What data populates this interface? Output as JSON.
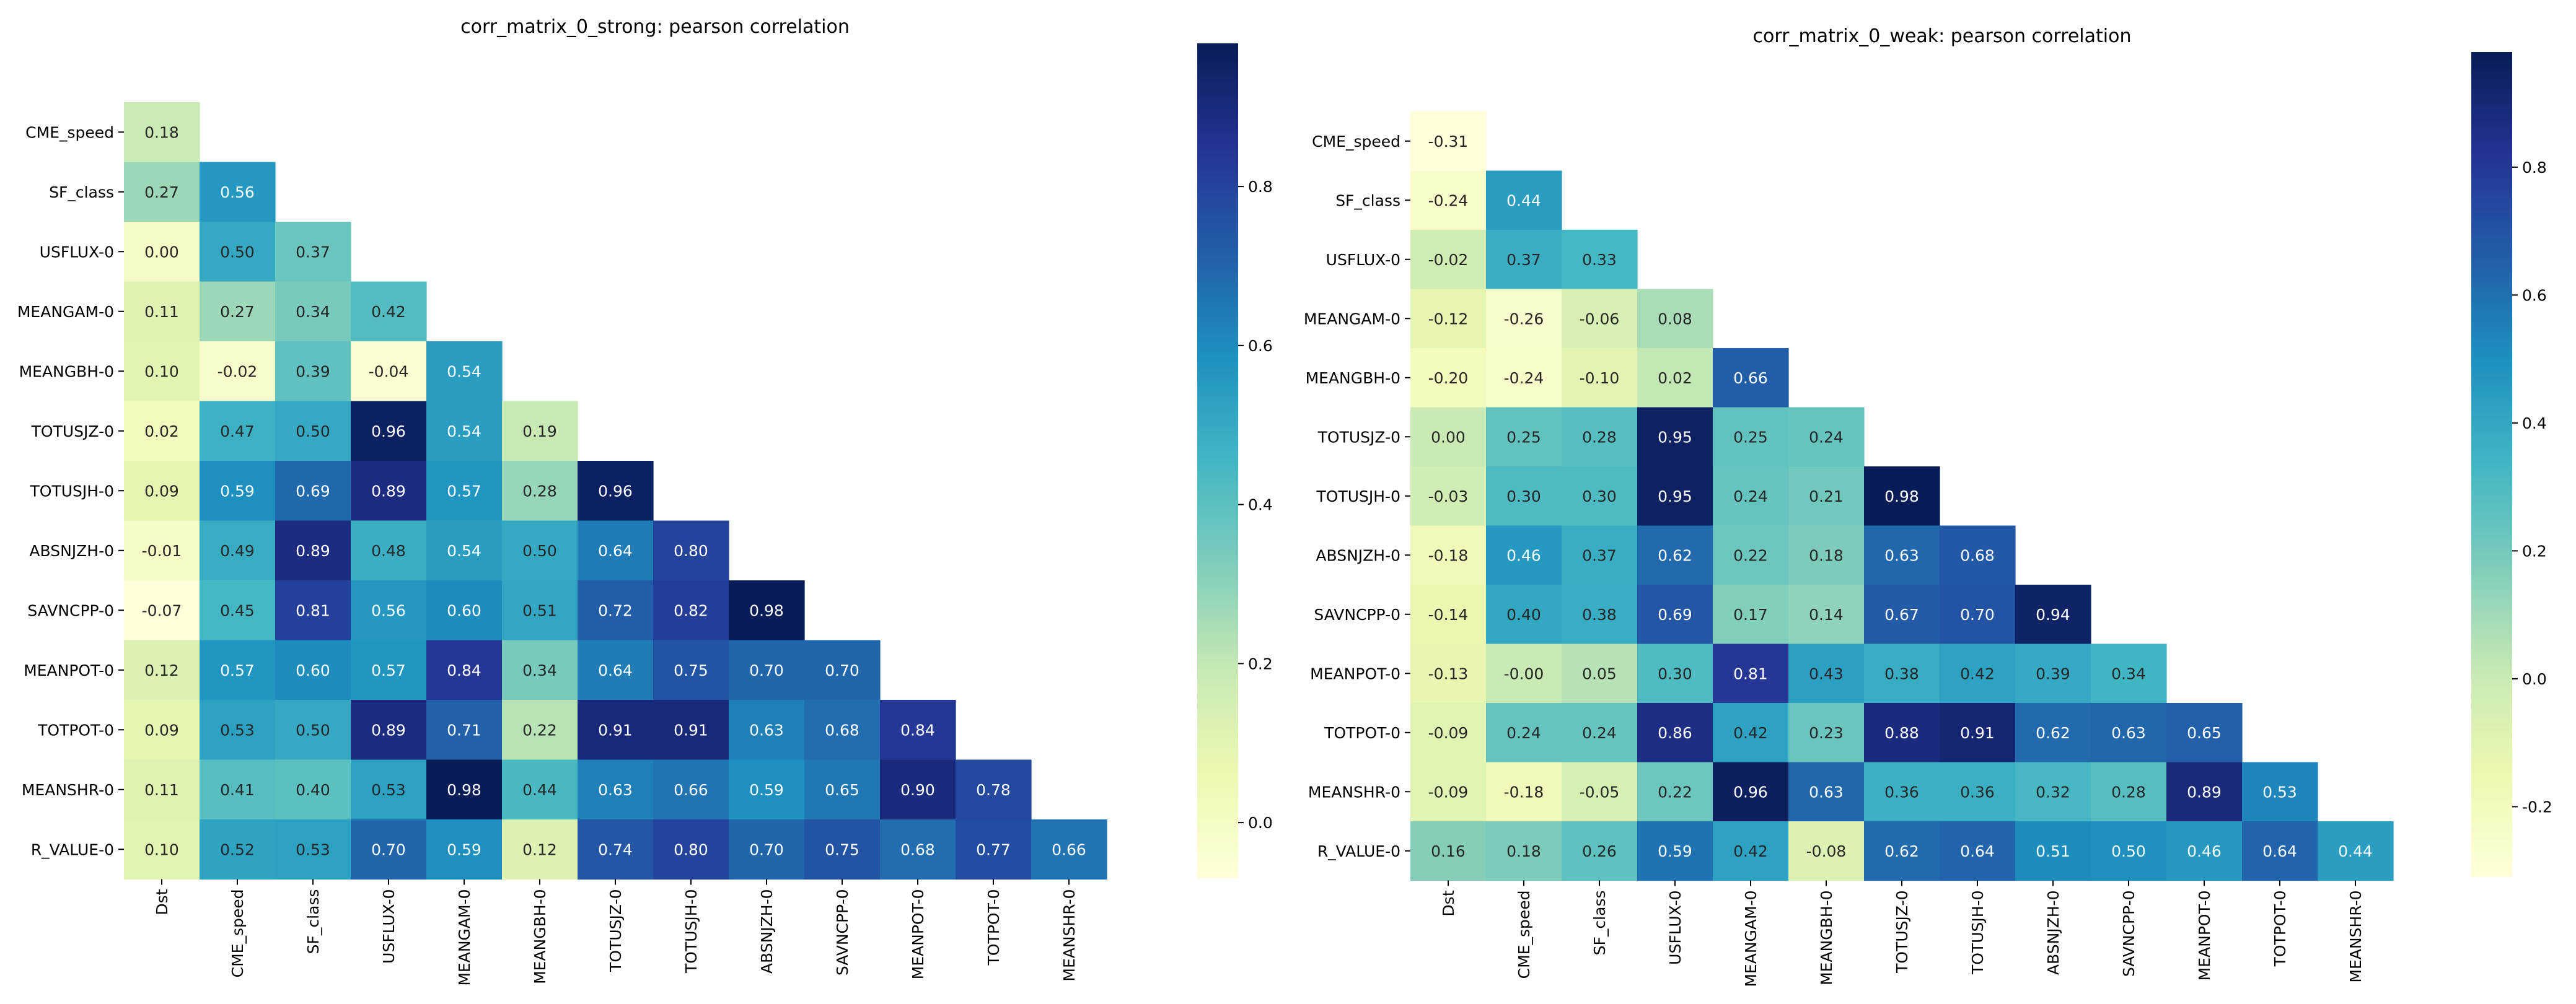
{
  "chart_data": [
    {
      "type": "heatmap",
      "title": "corr_matrix_0_strong: pearson correlation",
      "colormap": "YlGnBu",
      "vmin": -0.07,
      "vmax": 0.98,
      "row_labels": [
        "CME_speed",
        "SF_class",
        "USFLUX-0",
        "MEANGAM-0",
        "MEANGBH-0",
        "TOTUSJZ-0",
        "TOTUSJH-0",
        "ABSNJZH-0",
        "SAVNCPP-0",
        "MEANPOT-0",
        "TOTPOT-0",
        "MEANSHR-0",
        "R_VALUE-0"
      ],
      "col_labels": [
        "Dst",
        "CME_speed",
        "SF_class",
        "USFLUX-0",
        "MEANGAM-0",
        "MEANGBH-0",
        "TOTUSJZ-0",
        "TOTUSJH-0",
        "ABSNJZH-0",
        "SAVNCPP-0",
        "MEANPOT-0",
        "TOTPOT-0",
        "MEANSHR-0"
      ],
      "values": [
        [
          0.18
        ],
        [
          0.27,
          0.56
        ],
        [
          0.0,
          0.5,
          0.37
        ],
        [
          0.11,
          0.27,
          0.34,
          0.42
        ],
        [
          0.1,
          -0.02,
          0.39,
          -0.04,
          0.54
        ],
        [
          0.02,
          0.47,
          0.5,
          0.96,
          0.54,
          0.19
        ],
        [
          0.09,
          0.59,
          0.69,
          0.89,
          0.57,
          0.28,
          0.96
        ],
        [
          -0.01,
          0.49,
          0.89,
          0.48,
          0.54,
          0.5,
          0.64,
          0.8
        ],
        [
          -0.07,
          0.45,
          0.81,
          0.56,
          0.6,
          0.51,
          0.72,
          0.82,
          0.98
        ],
        [
          0.12,
          0.57,
          0.6,
          0.57,
          0.84,
          0.34,
          0.64,
          0.75,
          0.7,
          0.7
        ],
        [
          0.09,
          0.53,
          0.5,
          0.89,
          0.71,
          0.22,
          0.91,
          0.91,
          0.63,
          0.68,
          0.84
        ],
        [
          0.11,
          0.41,
          0.4,
          0.53,
          0.98,
          0.44,
          0.63,
          0.66,
          0.59,
          0.65,
          0.9,
          0.78
        ],
        [
          0.1,
          0.52,
          0.53,
          0.7,
          0.59,
          0.12,
          0.74,
          0.8,
          0.7,
          0.75,
          0.68,
          0.77,
          0.66
        ]
      ],
      "cell_labels": [
        [
          "0.18"
        ],
        [
          "0.27",
          "0.56"
        ],
        [
          "0.00",
          "0.50",
          "0.37"
        ],
        [
          "0.11",
          "0.27",
          "0.34",
          "0.42"
        ],
        [
          "0.10",
          "-0.02",
          "0.39",
          "-0.04",
          "0.54"
        ],
        [
          "0.02",
          "0.47",
          "0.50",
          "0.96",
          "0.54",
          "0.19"
        ],
        [
          "0.09",
          "0.59",
          "0.69",
          "0.89",
          "0.57",
          "0.28",
          "0.96"
        ],
        [
          "-0.01",
          "0.49",
          "0.89",
          "0.48",
          "0.54",
          "0.50",
          "0.64",
          "0.80"
        ],
        [
          "-0.07",
          "0.45",
          "0.81",
          "0.56",
          "0.60",
          "0.51",
          "0.72",
          "0.82",
          "0.98"
        ],
        [
          "0.12",
          "0.57",
          "0.60",
          "0.57",
          "0.84",
          "0.34",
          "0.64",
          "0.75",
          "0.70",
          "0.70"
        ],
        [
          "0.09",
          "0.53",
          "0.50",
          "0.89",
          "0.71",
          "0.22",
          "0.91",
          "0.91",
          "0.63",
          "0.68",
          "0.84"
        ],
        [
          "0.11",
          "0.41",
          "0.40",
          "0.53",
          "0.98",
          "0.44",
          "0.63",
          "0.66",
          "0.59",
          "0.65",
          "0.90",
          "0.78"
        ],
        [
          "0.10",
          "0.52",
          "0.53",
          "0.70",
          "0.59",
          "0.12",
          "0.74",
          "0.80",
          "0.70",
          "0.75",
          "0.68",
          "0.77",
          "0.66"
        ]
      ],
      "colorbar_ticks": [
        0.0,
        0.2,
        0.4,
        0.6,
        0.8
      ],
      "colorbar_tick_labels": [
        "0.0",
        "0.2",
        "0.4",
        "0.6",
        "0.8"
      ]
    },
    {
      "type": "heatmap",
      "title": "corr_matrix_0_weak: pearson correlation",
      "colormap": "YlGnBu",
      "vmin": -0.31,
      "vmax": 0.98,
      "row_labels": [
        "CME_speed",
        "SF_class",
        "USFLUX-0",
        "MEANGAM-0",
        "MEANGBH-0",
        "TOTUSJZ-0",
        "TOTUSJH-0",
        "ABSNJZH-0",
        "SAVNCPP-0",
        "MEANPOT-0",
        "TOTPOT-0",
        "MEANSHR-0",
        "R_VALUE-0"
      ],
      "col_labels": [
        "Dst",
        "CME_speed",
        "SF_class",
        "USFLUX-0",
        "MEANGAM-0",
        "MEANGBH-0",
        "TOTUSJZ-0",
        "TOTUSJH-0",
        "ABSNJZH-0",
        "SAVNCPP-0",
        "MEANPOT-0",
        "TOTPOT-0",
        "MEANSHR-0"
      ],
      "values": [
        [
          -0.31
        ],
        [
          -0.24,
          0.44
        ],
        [
          -0.02,
          0.37,
          0.33
        ],
        [
          -0.12,
          -0.26,
          -0.06,
          0.08
        ],
        [
          -0.2,
          -0.24,
          -0.1,
          0.02,
          0.66
        ],
        [
          0.0,
          0.25,
          0.28,
          0.95,
          0.25,
          0.24
        ],
        [
          -0.03,
          0.3,
          0.3,
          0.95,
          0.24,
          0.21,
          0.98
        ],
        [
          -0.18,
          0.46,
          0.37,
          0.62,
          0.22,
          0.18,
          0.63,
          0.68
        ],
        [
          -0.14,
          0.4,
          0.38,
          0.69,
          0.17,
          0.14,
          0.67,
          0.7,
          0.94
        ],
        [
          -0.13,
          0.0,
          0.05,
          0.3,
          0.81,
          0.43,
          0.38,
          0.42,
          0.39,
          0.34
        ],
        [
          -0.09,
          0.24,
          0.24,
          0.86,
          0.42,
          0.23,
          0.88,
          0.91,
          0.62,
          0.63,
          0.65
        ],
        [
          -0.09,
          -0.18,
          -0.05,
          0.22,
          0.96,
          0.63,
          0.36,
          0.36,
          0.32,
          0.28,
          0.89,
          0.53
        ],
        [
          0.16,
          0.18,
          0.26,
          0.59,
          0.42,
          -0.08,
          0.62,
          0.64,
          0.51,
          0.5,
          0.46,
          0.64,
          0.44
        ]
      ],
      "cell_labels": [
        [
          "-0.31"
        ],
        [
          "-0.24",
          "0.44"
        ],
        [
          "-0.02",
          "0.37",
          "0.33"
        ],
        [
          "-0.12",
          "-0.26",
          "-0.06",
          "0.08"
        ],
        [
          "-0.20",
          "-0.24",
          "-0.10",
          "0.02",
          "0.66"
        ],
        [
          "0.00",
          "0.25",
          "0.28",
          "0.95",
          "0.25",
          "0.24"
        ],
        [
          "-0.03",
          "0.30",
          "0.30",
          "0.95",
          "0.24",
          "0.21",
          "0.98"
        ],
        [
          "-0.18",
          "0.46",
          "0.37",
          "0.62",
          "0.22",
          "0.18",
          "0.63",
          "0.68"
        ],
        [
          "-0.14",
          "0.40",
          "0.38",
          "0.69",
          "0.17",
          "0.14",
          "0.67",
          "0.70",
          "0.94"
        ],
        [
          "-0.13",
          "-0.00",
          "0.05",
          "0.30",
          "0.81",
          "0.43",
          "0.38",
          "0.42",
          "0.39",
          "0.34"
        ],
        [
          "-0.09",
          "0.24",
          "0.24",
          "0.86",
          "0.42",
          "0.23",
          "0.88",
          "0.91",
          "0.62",
          "0.63",
          "0.65"
        ],
        [
          "-0.09",
          "-0.18",
          "-0.05",
          "0.22",
          "0.96",
          "0.63",
          "0.36",
          "0.36",
          "0.32",
          "0.28",
          "0.89",
          "0.53"
        ],
        [
          "0.16",
          "0.18",
          "0.26",
          "0.59",
          "0.42",
          "-0.08",
          "0.62",
          "0.64",
          "0.51",
          "0.50",
          "0.46",
          "0.64",
          "0.44"
        ]
      ],
      "colorbar_ticks": [
        -0.2,
        0.0,
        0.2,
        0.4,
        0.6,
        0.8
      ],
      "colorbar_tick_labels": [
        "-0.2",
        "0.0",
        "0.2",
        "0.4",
        "0.6",
        "0.8"
      ]
    }
  ]
}
